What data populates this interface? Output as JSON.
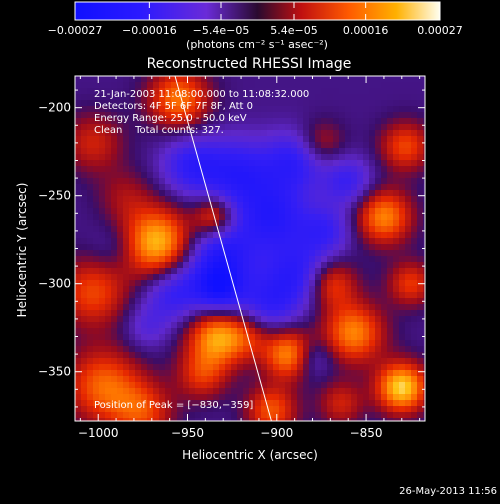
{
  "chart_data": {
    "type": "heatmap",
    "title": "Reconstructed RHESSI Image",
    "xlabel": "Heliocentric X (arcsec)",
    "ylabel": "Heliocentric Y (arcsec)",
    "xlim": [
      -1013,
      -817
    ],
    "ylim": [
      -378,
      -182
    ],
    "xticks": [
      -1000,
      -950,
      -900,
      -850
    ],
    "xtick_labels": [
      "−1000",
      "−950",
      "−900",
      "−850"
    ],
    "yticks": [
      -200,
      -250,
      -300,
      -350
    ],
    "ytick_labels": [
      "−200",
      "−250",
      "−300",
      "−350"
    ],
    "colorbar": {
      "range": [
        -0.00027,
        0.00027
      ],
      "ticks": [
        -0.00027,
        -0.00016,
        -5.4e-05,
        5.4e-05,
        0.00016,
        0.00027
      ],
      "tick_labels": [
        "−0.00027",
        "−0.00016",
        "−5.4e−05",
        "5.4e−05",
        "0.00016",
        "0.00027"
      ],
      "units": "(photons cm⁻² s⁻¹ asec⁻²)"
    },
    "annotations": [
      "21-Jan-2003 11:08:00.000 to 11:08:32.000",
      "Detectors: 4F 5F 6F 7F 8F, Att 0",
      "Energy Range: 25.0 - 50.0 keV",
      "Clean    Total counts: 327."
    ],
    "peak_label": "Position of Peak = [−830,−359]",
    "peak_position": [
      -830,
      -359
    ],
    "limb_line": [
      [
        -957,
        -182
      ],
      [
        -903,
        -378
      ]
    ],
    "field_description": "mottled map: negative (blue/purple) region along center diagonal, positive (orange/yellow) blobs on left and right edges",
    "blobs": [
      [
        -967,
        -277,
        0.95,
        14
      ],
      [
        -955,
        -195,
        0.7,
        12
      ],
      [
        -1003,
        -305,
        0.55,
        14
      ],
      [
        -997,
        -358,
        0.65,
        15
      ],
      [
        -975,
        -373,
        0.5,
        12
      ],
      [
        -1003,
        -220,
        0.4,
        12
      ],
      [
        -985,
        -250,
        0.25,
        11
      ],
      [
        -935,
        -262,
        0.6,
        8
      ],
      [
        -933,
        -330,
        0.85,
        12
      ],
      [
        -942,
        -352,
        0.45,
        10
      ],
      [
        -915,
        -330,
        0.3,
        9
      ],
      [
        -893,
        -340,
        0.8,
        10
      ],
      [
        -903,
        -372,
        0.6,
        10
      ],
      [
        -870,
        -300,
        0.6,
        10
      ],
      [
        -857,
        -328,
        0.75,
        12
      ],
      [
        -840,
        -262,
        0.75,
        11
      ],
      [
        -828,
        -222,
        0.55,
        10
      ],
      [
        -830,
        -359,
        1.0,
        10
      ],
      [
        -825,
        -300,
        0.5,
        9
      ],
      [
        -875,
        -220,
        0.35,
        9
      ],
      [
        -864,
        -368,
        0.4,
        9
      ],
      [
        -948,
        -233,
        -0.5,
        12
      ],
      [
        -922,
        -237,
        -0.55,
        14
      ],
      [
        -902,
        -262,
        -0.6,
        15
      ],
      [
        -887,
        -295,
        -0.55,
        13
      ],
      [
        -932,
        -285,
        -0.65,
        14
      ],
      [
        -958,
        -305,
        -0.5,
        12
      ],
      [
        -932,
        -305,
        -0.6,
        10
      ],
      [
        -905,
        -312,
        -0.45,
        12
      ],
      [
        -890,
        -230,
        -0.5,
        12
      ],
      [
        -860,
        -242,
        -0.45,
        10
      ],
      [
        -872,
        -270,
        -0.4,
        10
      ],
      [
        -990,
        -280,
        -0.2,
        10
      ],
      [
        -880,
        -342,
        -0.35,
        8
      ],
      [
        -973,
        -325,
        -0.25,
        9
      ]
    ]
  },
  "footer": {
    "date": "26-May-2013 11:56"
  }
}
